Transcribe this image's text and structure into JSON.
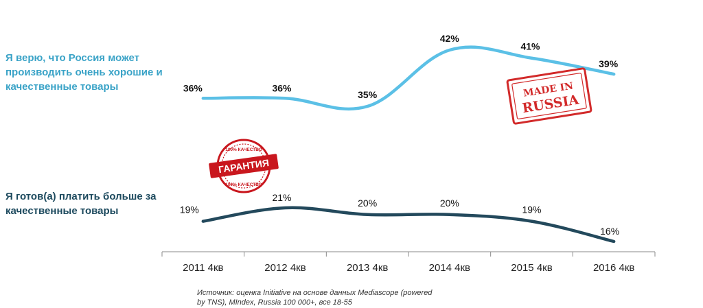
{
  "chart_data": {
    "type": "line",
    "categories": [
      "2011 4кв",
      "2012 4кв",
      "2013 4кв",
      "2014 4кв",
      "2015 4кв",
      "2016 4кв"
    ],
    "series": [
      {
        "name": "Я верю, что Россия может производить очень хорошие и качественные товары",
        "values": [
          36,
          36,
          35,
          42,
          41,
          39
        ],
        "labels": [
          "36%",
          "36%",
          "35%",
          "42%",
          "41%",
          "39%"
        ],
        "color": "#5bc0e6"
      },
      {
        "name": "Я готов(а) платить больше за качественные товары",
        "values": [
          19,
          21,
          20,
          20,
          19,
          16
        ],
        "labels": [
          "19%",
          "21%",
          "20%",
          "20%",
          "19%",
          "16%"
        ],
        "color": "#23495c"
      }
    ],
    "xlabel": "",
    "ylabel": "",
    "grid": false
  },
  "legend": {
    "top_line1": "Я верю, что Россия может",
    "top_line2": "производить очень хорошие и",
    "top_line3": "качественные товары",
    "bottom_line1": "Я готов(а) платить больше за",
    "bottom_line2": "качественные товары"
  },
  "stamps": {
    "made_in_line1": "MADE IN",
    "made_in_line2": "RUSSIA",
    "guarantee_main": "ГАРАНТИЯ",
    "guarantee_top": "100% КАЧЕСТВО",
    "guarantee_bottom": "100% КАЧЕСТВО"
  },
  "source": {
    "line1": "Источник: оценка Initiative на основе данных Mediascope (powered",
    "line2": "by TNS), MIndex, Russia 100 000+, все 18-55"
  },
  "colors": {
    "top_line": "#5bc0e6",
    "bottom_line": "#23495c",
    "stamp_red": "#d22a2a"
  }
}
